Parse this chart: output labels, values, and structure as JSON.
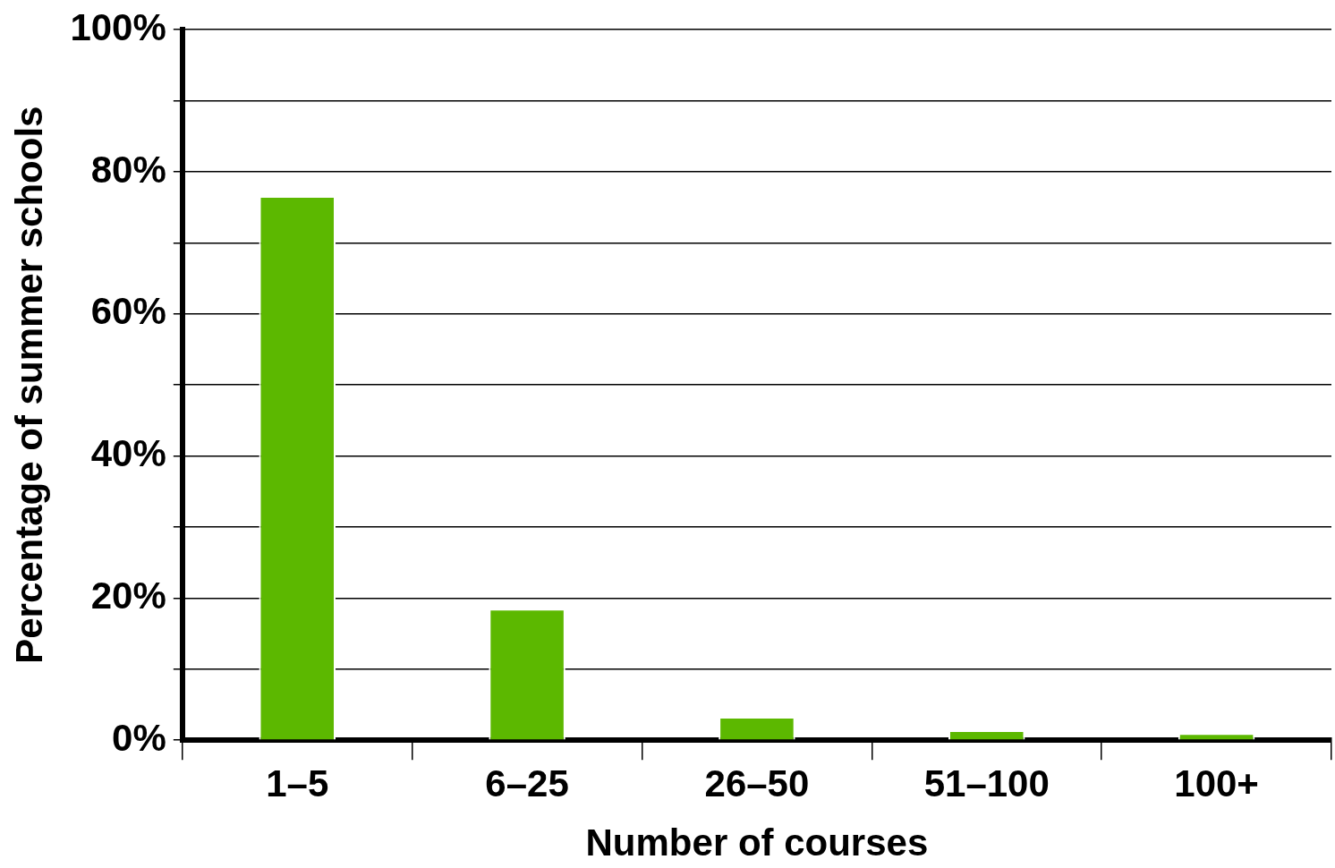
{
  "chart_data": {
    "type": "bar",
    "xlabel": "Number of courses",
    "ylabel": "Percentage of summer schools",
    "categories": [
      "1–5",
      "6–25",
      "26–50",
      "51–100",
      "100+"
    ],
    "values": [
      76.6,
      18.5,
      3.3,
      1.4,
      1.0
    ],
    "color": "#5cb800",
    "ylim": [
      0,
      100
    ],
    "yticks": [
      {
        "value": 0,
        "label": "0%"
      },
      {
        "value": 10,
        "label": null
      },
      {
        "value": 20,
        "label": "20%"
      },
      {
        "value": 30,
        "label": null
      },
      {
        "value": 40,
        "label": "40%"
      },
      {
        "value": 50,
        "label": null
      },
      {
        "value": 60,
        "label": "60%"
      },
      {
        "value": 70,
        "label": null
      },
      {
        "value": 80,
        "label": "80%"
      },
      {
        "value": 90,
        "label": null
      },
      {
        "value": 100,
        "label": "100%"
      }
    ],
    "grid": "y",
    "legend": false
  }
}
